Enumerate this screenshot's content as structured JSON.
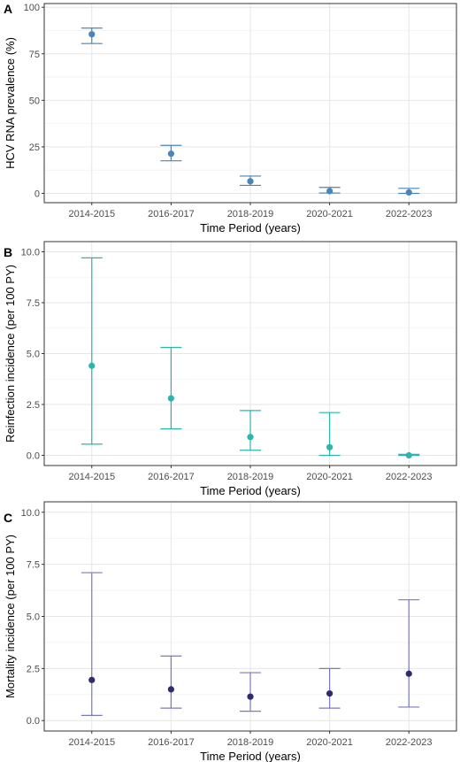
{
  "chart_data": [
    {
      "panel_label": "A",
      "type": "scatter",
      "categories": [
        "2014-2015",
        "2016-2017",
        "2018-2019",
        "2020-2021",
        "2022-2023"
      ],
      "values": [
        85.5,
        21.3,
        6.5,
        1.2,
        0.5
      ],
      "ci_lower": [
        80.5,
        17.5,
        4.3,
        0.2,
        0.0
      ],
      "ci_upper": [
        88.8,
        25.8,
        9.3,
        3.2,
        2.7
      ],
      "color": "#4a84b8",
      "xlabel": "Time Period (years)",
      "ylabel": "HCV RNA prevalence (%)",
      "ylim": [
        -5,
        102
      ],
      "yticks": [
        0,
        25,
        50,
        75,
        100
      ],
      "ytick_labels": [
        "0",
        "25",
        "50",
        "75",
        "100"
      ],
      "grid": true
    },
    {
      "panel_label": "B",
      "type": "scatter",
      "categories": [
        "2014-2015",
        "2016-2017",
        "2018-2019",
        "2020-2021",
        "2022-2023"
      ],
      "values": [
        4.4,
        2.8,
        0.9,
        0.4,
        0.0
      ],
      "ci_lower": [
        0.55,
        1.3,
        0.25,
        0.0,
        0.0
      ],
      "ci_upper": [
        9.7,
        5.3,
        2.2,
        2.1,
        0.05
      ],
      "color": "#2ab5ad",
      "xlabel": "Time Period (years)",
      "ylabel": "Reinfection incidence (per 100 PY)",
      "ylim": [
        -0.5,
        10.5
      ],
      "yticks": [
        0,
        2.5,
        5,
        7.5,
        10
      ],
      "ytick_labels": [
        "0.0",
        "2.5",
        "5.0",
        "7.5",
        "10.0"
      ],
      "grid": true
    },
    {
      "panel_label": "C",
      "type": "scatter",
      "categories": [
        "2014-2015",
        "2016-2017",
        "2018-2019",
        "2020-2021",
        "2022-2023"
      ],
      "values": [
        1.95,
        1.5,
        1.15,
        1.3,
        2.25
      ],
      "ci_lower": [
        0.25,
        0.6,
        0.45,
        0.6,
        0.65
      ],
      "ci_upper": [
        7.1,
        3.1,
        2.3,
        2.5,
        5.8
      ],
      "color": "#2e2b6e",
      "bar_color": "#7b78bf",
      "xlabel": "Time Period (years)",
      "ylabel": "Mortality incidence (per 100 PY)",
      "ylim": [
        -0.5,
        10.5
      ],
      "yticks": [
        0,
        2.5,
        5,
        7.5,
        10
      ],
      "ytick_labels": [
        "0.0",
        "2.5",
        "5.0",
        "7.5",
        "10.0"
      ],
      "grid": true
    }
  ]
}
